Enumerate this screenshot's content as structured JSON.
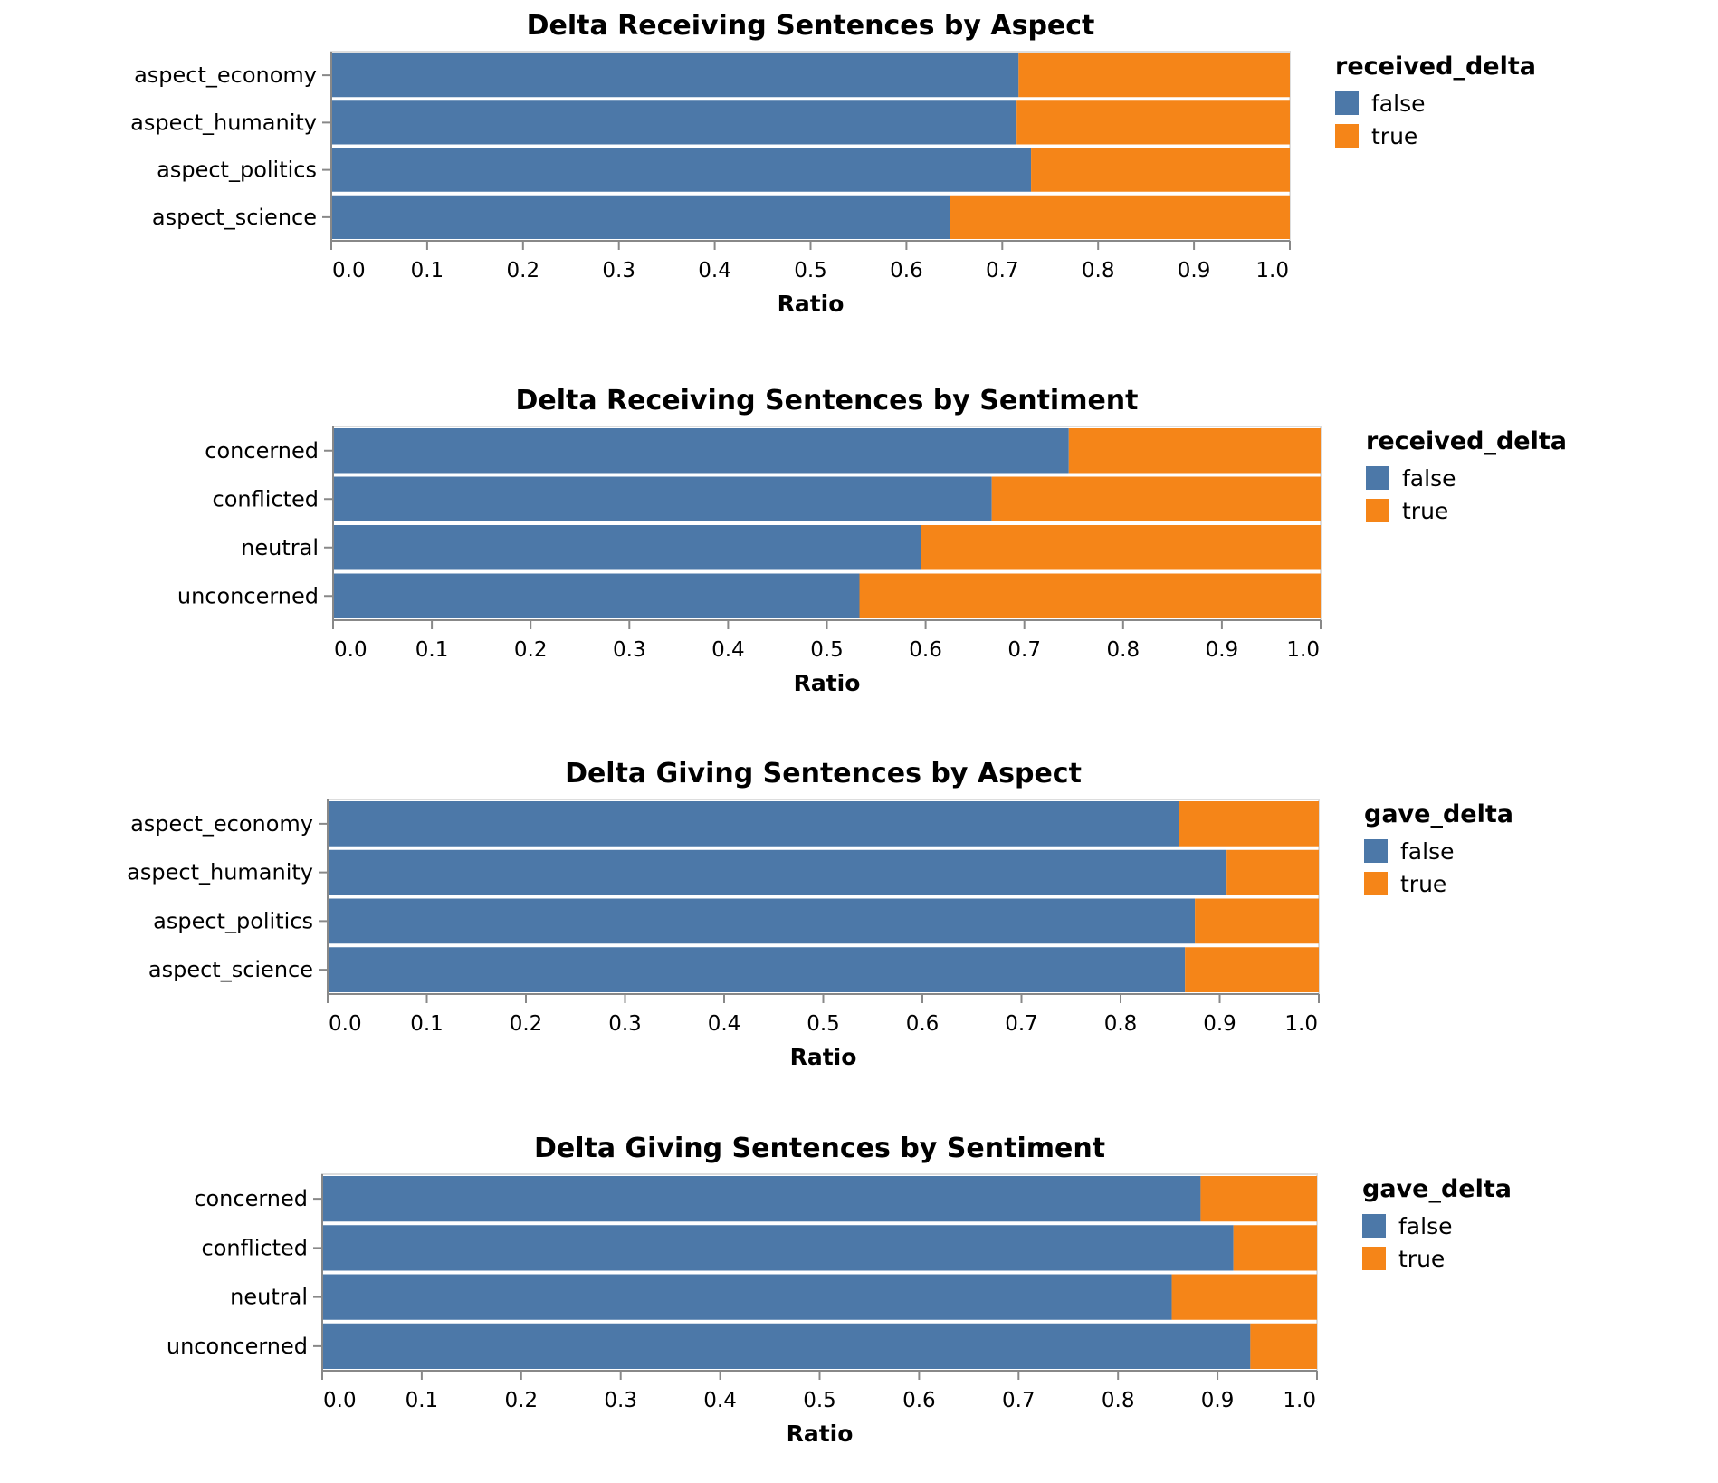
{
  "colors": {
    "false": "#4c78a8",
    "true": "#f58518",
    "axis": "#888888",
    "frame": "#dddddd"
  },
  "chart_data": [
    {
      "type": "bar",
      "stacked": "normalized",
      "title": "Delta Receiving Sentences by Aspect",
      "xlabel": "Ratio",
      "xlim": [
        0,
        1
      ],
      "ticks": [
        "0.0",
        "0.1",
        "0.2",
        "0.3",
        "0.4",
        "0.5",
        "0.6",
        "0.7",
        "0.8",
        "0.9",
        "1.0"
      ],
      "legend_title": "received_delta",
      "categories": [
        "aspect_economy",
        "aspect_humanity",
        "aspect_politics",
        "aspect_science"
      ],
      "series": [
        {
          "name": "false",
          "values": [
            0.717,
            0.715,
            0.73,
            0.645
          ]
        },
        {
          "name": "true",
          "values": [
            0.283,
            0.285,
            0.27,
            0.355
          ]
        }
      ]
    },
    {
      "type": "bar",
      "stacked": "normalized",
      "title": "Delta Receiving Sentences by Sentiment",
      "xlabel": "Ratio",
      "xlim": [
        0,
        1
      ],
      "ticks": [
        "0.0",
        "0.1",
        "0.2",
        "0.3",
        "0.4",
        "0.5",
        "0.6",
        "0.7",
        "0.8",
        "0.9",
        "1.0"
      ],
      "legend_title": "received_delta",
      "categories": [
        "concerned",
        "conflicted",
        "neutral",
        "unconcerned"
      ],
      "series": [
        {
          "name": "false",
          "values": [
            0.745,
            0.667,
            0.595,
            0.533
          ]
        },
        {
          "name": "true",
          "values": [
            0.255,
            0.333,
            0.405,
            0.467
          ]
        }
      ]
    },
    {
      "type": "bar",
      "stacked": "normalized",
      "title": "Delta Giving Sentences by Aspect",
      "xlabel": "Ratio",
      "xlim": [
        0,
        1
      ],
      "ticks": [
        "0.0",
        "0.1",
        "0.2",
        "0.3",
        "0.4",
        "0.5",
        "0.6",
        "0.7",
        "0.8",
        "0.9",
        "1.0"
      ],
      "legend_title": "gave_delta",
      "categories": [
        "aspect_economy",
        "aspect_humanity",
        "aspect_politics",
        "aspect_science"
      ],
      "series": [
        {
          "name": "false",
          "values": [
            0.859,
            0.907,
            0.875,
            0.865
          ]
        },
        {
          "name": "true",
          "values": [
            0.141,
            0.093,
            0.125,
            0.135
          ]
        }
      ]
    },
    {
      "type": "bar",
      "stacked": "normalized",
      "title": "Delta Giving Sentences by Sentiment",
      "xlabel": "Ratio",
      "xlim": [
        0,
        1
      ],
      "ticks": [
        "0.0",
        "0.1",
        "0.2",
        "0.3",
        "0.4",
        "0.5",
        "0.6",
        "0.7",
        "0.8",
        "0.9",
        "1.0"
      ],
      "legend_title": "gave_delta",
      "categories": [
        "concerned",
        "conflicted",
        "neutral",
        "unconcerned"
      ],
      "series": [
        {
          "name": "false",
          "values": [
            0.883,
            0.916,
            0.854,
            0.933
          ]
        },
        {
          "name": "true",
          "values": [
            0.117,
            0.084,
            0.146,
            0.067
          ]
        }
      ]
    }
  ]
}
